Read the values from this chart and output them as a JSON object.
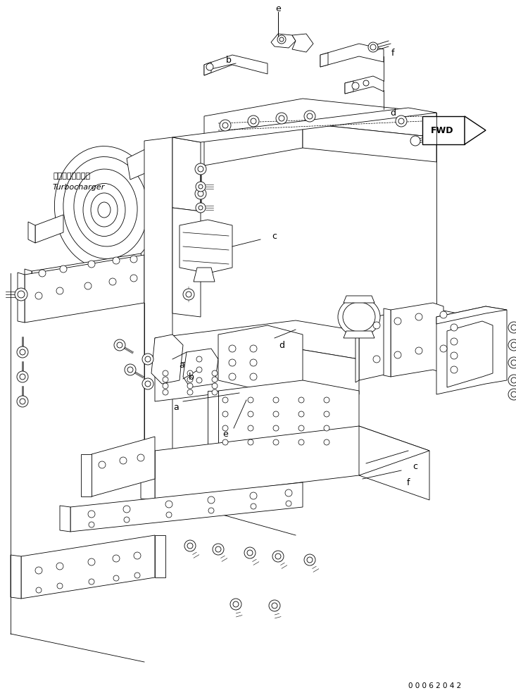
{
  "background_color": "#ffffff",
  "line_color": "#000000",
  "fig_width": 7.33,
  "fig_height": 9.94,
  "dpi": 100,
  "labels": {
    "turbocharger_jp": "ターボチャージャ",
    "turbocharger_en": "Turbocharger",
    "part_number": "0 0 0 6 2 0 4 2"
  }
}
